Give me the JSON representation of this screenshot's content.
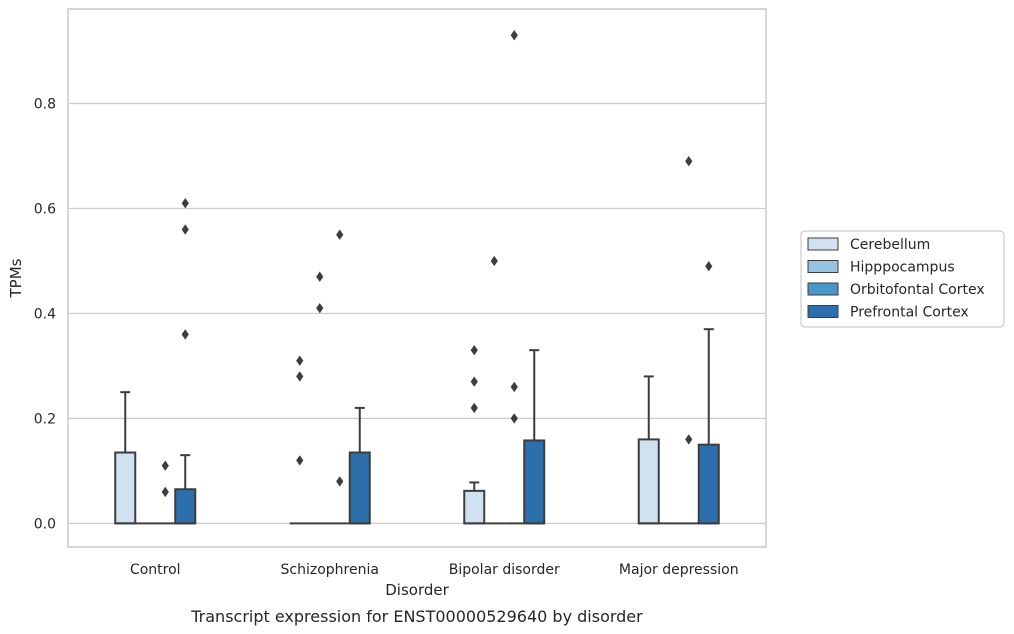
{
  "chart_data": {
    "type": "boxplot",
    "title": "Transcript expression for ENST00000529640 by disorder",
    "xlabel": "Disorder",
    "ylabel": "TPMs",
    "ylim": [
      -0.045,
      0.98
    ],
    "yticks": [
      "0.0",
      "0.2",
      "0.4",
      "0.6",
      "0.8"
    ],
    "grid": true,
    "legend_position": "right",
    "categories": [
      "Control",
      "Schizophrenia",
      "Bipolar disorder",
      "Major depression"
    ],
    "series": [
      {
        "name": "Cerebellum",
        "color": "#d0e1f2",
        "boxes": [
          {
            "q1": 0.0,
            "median": 0.0,
            "q3": 0.135,
            "whisker_low": 0.0,
            "whisker_high": 0.25,
            "outliers": []
          },
          {
            "q1": 0.0,
            "median": 0.0,
            "q3": 0.0,
            "whisker_low": 0.0,
            "whisker_high": 0.0,
            "outliers": [
              0.12,
              0.28,
              0.31
            ]
          },
          {
            "q1": 0.0,
            "median": 0.0,
            "q3": 0.062,
            "whisker_low": 0.0,
            "whisker_high": 0.078,
            "outliers": [
              0.22,
              0.27,
              0.33
            ]
          },
          {
            "q1": 0.0,
            "median": 0.0,
            "q3": 0.16,
            "whisker_low": 0.0,
            "whisker_high": 0.28,
            "outliers": []
          }
        ]
      },
      {
        "name": "Hipppocampus",
        "color": "#94c4df",
        "boxes": [
          {
            "q1": 0.0,
            "median": 0.0,
            "q3": 0.0,
            "whisker_low": 0.0,
            "whisker_high": 0.0,
            "outliers": []
          },
          {
            "q1": 0.0,
            "median": 0.0,
            "q3": 0.0,
            "whisker_low": 0.0,
            "whisker_high": 0.0,
            "outliers": [
              0.41,
              0.47
            ]
          },
          {
            "q1": 0.0,
            "median": 0.0,
            "q3": 0.0,
            "whisker_low": 0.0,
            "whisker_high": 0.0,
            "outliers": [
              0.5
            ]
          },
          {
            "q1": 0.0,
            "median": 0.0,
            "q3": 0.0,
            "whisker_low": 0.0,
            "whisker_high": 0.0,
            "outliers": []
          }
        ]
      },
      {
        "name": "Orbitofontal Cortex",
        "color": "#4a98c9",
        "boxes": [
          {
            "q1": 0.0,
            "median": 0.0,
            "q3": 0.0,
            "whisker_low": 0.0,
            "whisker_high": 0.0,
            "outliers": [
              0.06,
              0.11
            ]
          },
          {
            "q1": 0.0,
            "median": 0.0,
            "q3": 0.0,
            "whisker_low": 0.0,
            "whisker_high": 0.0,
            "outliers": [
              0.08,
              0.55
            ]
          },
          {
            "q1": 0.0,
            "median": 0.0,
            "q3": 0.0,
            "whisker_low": 0.0,
            "whisker_high": 0.0,
            "outliers": [
              0.2,
              0.26,
              0.93
            ]
          },
          {
            "q1": 0.0,
            "median": 0.0,
            "q3": 0.0,
            "whisker_low": 0.0,
            "whisker_high": 0.0,
            "outliers": [
              0.16,
              0.69
            ]
          }
        ]
      },
      {
        "name": "Prefrontal Cortex",
        "color": "#2d6fad",
        "boxes": [
          {
            "q1": 0.0,
            "median": 0.0,
            "q3": 0.065,
            "whisker_low": 0.0,
            "whisker_high": 0.13,
            "outliers": [
              0.36,
              0.56,
              0.61
            ]
          },
          {
            "q1": 0.0,
            "median": 0.0,
            "q3": 0.135,
            "whisker_low": 0.0,
            "whisker_high": 0.22,
            "outliers": []
          },
          {
            "q1": 0.0,
            "median": 0.0,
            "q3": 0.158,
            "whisker_low": 0.0,
            "whisker_high": 0.33,
            "outliers": []
          },
          {
            "q1": 0.0,
            "median": 0.0,
            "q3": 0.15,
            "whisker_low": 0.0,
            "whisker_high": 0.37,
            "outliers": [
              0.49
            ]
          }
        ]
      }
    ]
  }
}
